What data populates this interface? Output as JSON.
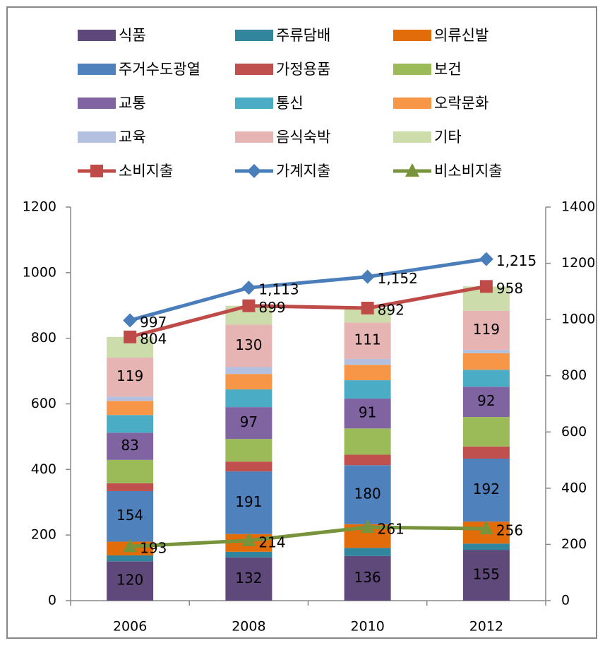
{
  "chart_data": {
    "type": "bar",
    "stacked": true,
    "categories": [
      "2006",
      "2008",
      "2010",
      "2012"
    ],
    "ylim": [
      0,
      1200
    ],
    "yticks": [
      0,
      200,
      400,
      600,
      800,
      1000,
      1200
    ],
    "y2lim": [
      0,
      1400
    ],
    "y2ticks": [
      0,
      200,
      400,
      600,
      800,
      1000,
      1200,
      1400
    ],
    "legend": "top",
    "series": [
      {
        "name": "식품",
        "type": "bar",
        "color": "#5f497a",
        "values": [
          120,
          132,
          136,
          155
        ],
        "show_labels": true
      },
      {
        "name": "주류담배",
        "type": "bar",
        "color": "#31859c",
        "values": [
          18,
          17,
          25,
          19
        ]
      },
      {
        "name": "의류신발",
        "type": "bar",
        "color": "#e26b0a",
        "values": [
          42,
          54,
          72,
          67
        ]
      },
      {
        "name": "주거수도광열",
        "type": "bar",
        "color": "#4f81bd",
        "values": [
          154,
          191,
          180,
          192
        ],
        "show_labels": true
      },
      {
        "name": "가정용품",
        "type": "bar",
        "color": "#c0504d",
        "values": [
          24,
          30,
          32,
          37
        ]
      },
      {
        "name": "보건",
        "type": "bar",
        "color": "#9bbb59",
        "values": [
          71,
          69,
          80,
          90
        ]
      },
      {
        "name": "교통",
        "type": "bar",
        "color": "#8064a2",
        "values": [
          83,
          97,
          91,
          92
        ],
        "show_labels": true
      },
      {
        "name": "통신",
        "type": "bar",
        "color": "#4bacc6",
        "values": [
          54,
          54,
          56,
          52
        ]
      },
      {
        "name": "오락문화",
        "type": "bar",
        "color": "#f79646",
        "values": [
          43,
          47,
          47,
          50
        ]
      },
      {
        "name": "교육",
        "type": "bar",
        "color": "#b3c0e0",
        "values": [
          13,
          21,
          18,
          11
        ]
      },
      {
        "name": "음식숙박",
        "type": "bar",
        "color": "#e6b4b3",
        "values": [
          119,
          130,
          111,
          119
        ],
        "show_labels": true
      },
      {
        "name": "기타",
        "type": "bar",
        "color": "#cddcab",
        "values": [
          63,
          57,
          44,
          74
        ]
      },
      {
        "name": "소비지출",
        "type": "line",
        "marker": "square",
        "color": "#be4b48",
        "values": [
          804,
          899,
          892,
          958
        ],
        "show_labels": true
      },
      {
        "name": "가계지출",
        "type": "line",
        "marker": "diamond",
        "axis": "y2",
        "color": "#4a7ebb",
        "values": [
          997,
          1113,
          1152,
          1215
        ],
        "value_labels": [
          "997",
          "1,113",
          "1,152",
          "1,215"
        ],
        "show_labels": true
      },
      {
        "name": "비소비지출",
        "type": "line",
        "marker": "triangle",
        "axis": "y2",
        "color": "#77933c",
        "values": [
          193,
          214,
          261,
          256
        ],
        "show_labels": true
      }
    ]
  }
}
